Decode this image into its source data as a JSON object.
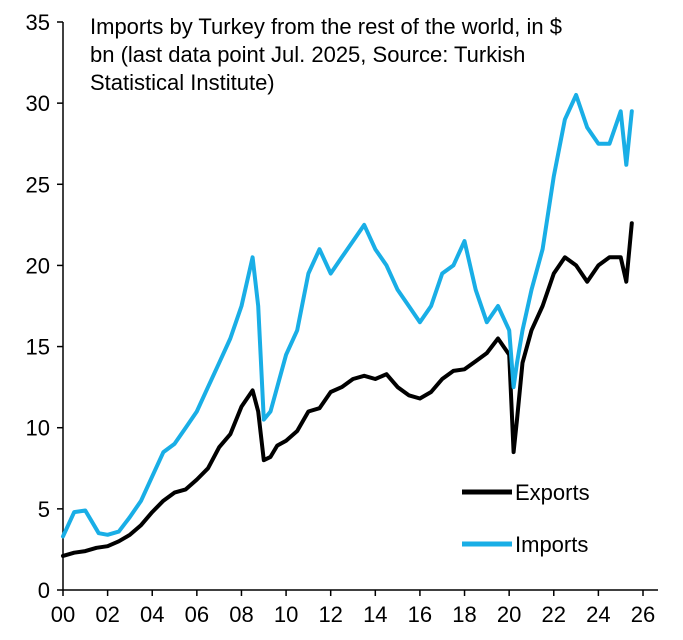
{
  "chart_data": {
    "type": "line",
    "title": "Imports by Turkey from the rest of the world, in $ bn (last data point Jul. 2025, Source: Turkish Statistical Institute)",
    "title_lines": [
      "Imports by Turkey from the rest of the world, in $",
      "bn (last data point Jul. 2025, Source: Turkish",
      "Statistical Institute)"
    ],
    "xlabel": "",
    "ylabel": "",
    "xlim": [
      2000,
      2026.5
    ],
    "ylim": [
      0,
      35
    ],
    "x_ticks": [
      2000,
      2002,
      2004,
      2006,
      2008,
      2010,
      2012,
      2014,
      2016,
      2018,
      2020,
      2022,
      2024,
      2026
    ],
    "x_tick_labels": [
      "00",
      "02",
      "04",
      "06",
      "08",
      "10",
      "12",
      "14",
      "16",
      "18",
      "20",
      "22",
      "24",
      "26"
    ],
    "y_ticks": [
      0,
      5,
      10,
      15,
      20,
      25,
      30,
      35
    ],
    "y_tick_labels": [
      "0",
      "5",
      "10",
      "15",
      "20",
      "25",
      "30",
      "35"
    ],
    "grid": false,
    "legend_position": "bottom-right",
    "series": [
      {
        "name": "Exports",
        "color": "#000000",
        "x": [
          2000.0,
          2000.5,
          2001.0,
          2001.5,
          2002.0,
          2002.5,
          2003.0,
          2003.5,
          2004.0,
          2004.5,
          2005.0,
          2005.5,
          2006.0,
          2006.5,
          2007.0,
          2007.5,
          2008.0,
          2008.5,
          2008.75,
          2009.0,
          2009.3,
          2009.6,
          2010.0,
          2010.5,
          2011.0,
          2011.5,
          2012.0,
          2012.5,
          2013.0,
          2013.5,
          2014.0,
          2014.5,
          2015.0,
          2015.5,
          2016.0,
          2016.5,
          2017.0,
          2017.5,
          2018.0,
          2018.5,
          2019.0,
          2019.5,
          2020.0,
          2020.2,
          2020.35,
          2020.6,
          2021.0,
          2021.5,
          2022.0,
          2022.5,
          2023.0,
          2023.5,
          2024.0,
          2024.5,
          2025.0,
          2025.25,
          2025.5
        ],
        "values": [
          2.1,
          2.3,
          2.4,
          2.6,
          2.7,
          3.0,
          3.4,
          4.0,
          4.8,
          5.5,
          6.0,
          6.2,
          6.8,
          7.5,
          8.8,
          9.6,
          11.3,
          12.3,
          11.0,
          8.0,
          8.2,
          8.9,
          9.2,
          9.8,
          11.0,
          11.2,
          12.2,
          12.5,
          13.0,
          13.2,
          13.0,
          13.3,
          12.5,
          12.0,
          11.8,
          12.2,
          13.0,
          13.5,
          13.6,
          14.1,
          14.6,
          15.5,
          14.5,
          8.5,
          10.5,
          14.0,
          16.0,
          17.5,
          19.5,
          20.5,
          20.0,
          19.0,
          20.0,
          20.5,
          20.5,
          19.0,
          22.6
        ]
      },
      {
        "name": "Imports",
        "color": "#19aee6",
        "x": [
          2000.0,
          2000.5,
          2001.0,
          2001.3,
          2001.6,
          2002.0,
          2002.5,
          2003.0,
          2003.5,
          2004.0,
          2004.5,
          2005.0,
          2005.5,
          2006.0,
          2006.5,
          2007.0,
          2007.5,
          2008.0,
          2008.5,
          2008.75,
          2009.0,
          2009.3,
          2009.6,
          2010.0,
          2010.5,
          2011.0,
          2011.5,
          2012.0,
          2012.5,
          2013.0,
          2013.5,
          2014.0,
          2014.5,
          2015.0,
          2015.5,
          2016.0,
          2016.5,
          2017.0,
          2017.5,
          2018.0,
          2018.5,
          2019.0,
          2019.5,
          2020.0,
          2020.2,
          2020.35,
          2020.6,
          2021.0,
          2021.5,
          2022.0,
          2022.5,
          2023.0,
          2023.5,
          2024.0,
          2024.5,
          2025.0,
          2025.25,
          2025.5
        ],
        "values": [
          3.3,
          4.8,
          4.9,
          4.2,
          3.5,
          3.4,
          3.6,
          4.5,
          5.5,
          7.0,
          8.5,
          9.0,
          10.0,
          11.0,
          12.5,
          14.0,
          15.5,
          17.5,
          20.5,
          17.5,
          10.5,
          11.0,
          12.5,
          14.5,
          16.0,
          19.5,
          21.0,
          19.5,
          20.5,
          21.5,
          22.5,
          21.0,
          20.0,
          18.5,
          17.5,
          16.5,
          17.5,
          19.5,
          20.0,
          21.5,
          18.5,
          16.5,
          17.5,
          16.0,
          12.5,
          14.0,
          16.0,
          18.5,
          21.0,
          25.5,
          29.0,
          30.5,
          28.5,
          27.5,
          27.5,
          29.5,
          26.2,
          29.5
        ]
      }
    ]
  },
  "legend": {
    "items": [
      {
        "label": "Exports",
        "color": "#000000"
      },
      {
        "label": "Imports",
        "color": "#19aee6"
      }
    ]
  }
}
